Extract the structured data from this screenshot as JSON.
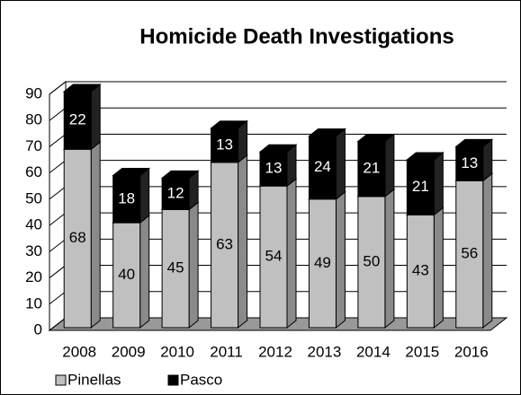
{
  "chart_data": {
    "type": "bar",
    "stacked": true,
    "three_d": true,
    "title": "Homicide Death Investigations",
    "categories": [
      "2008",
      "2009",
      "2010",
      "2011",
      "2012",
      "2013",
      "2014",
      "2015",
      "2016"
    ],
    "series": [
      {
        "name": "Pinellas",
        "color": "#c0c0c0",
        "values": [
          68,
          40,
          45,
          63,
          54,
          49,
          50,
          43,
          56
        ]
      },
      {
        "name": "Pasco",
        "color": "#000000",
        "values": [
          22,
          18,
          12,
          13,
          13,
          24,
          21,
          21,
          13
        ]
      }
    ],
    "ylim": [
      0,
      90
    ],
    "yticks": [
      0,
      10,
      20,
      30,
      40,
      50,
      60,
      70,
      80,
      90
    ],
    "grid": true,
    "legend": "bottom"
  }
}
